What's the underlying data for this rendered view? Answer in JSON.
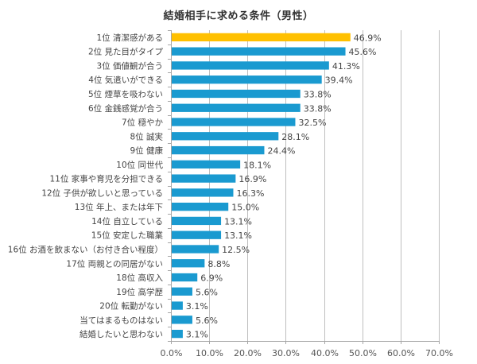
{
  "chart_data": {
    "type": "bar",
    "orientation": "horizontal",
    "title": "結婚相手に求める条件（男性）",
    "xlabel": "",
    "ylabel": "",
    "xlim": [
      0,
      70
    ],
    "x_ticks": [
      "0.0%",
      "10.0%",
      "20.0%",
      "30.0%",
      "40.0%",
      "50.0%",
      "60.0%",
      "70.0%"
    ],
    "grid": true,
    "legend": "none",
    "value_suffix": "%",
    "colors": {
      "highlight": "#FFC000",
      "default": "#1A9AD0",
      "grid": "#BFBFBF",
      "axis": "#A6A6A6"
    },
    "categories": [
      "1位 清潔感がある",
      "2位 見た目がタイプ",
      "3位 価値観が合う",
      "4位 気遣いができる",
      "5位 煙草を吸わない",
      "6位 金銭感覚が合う",
      "7位 穏やか",
      "8位 誠実",
      "9位 健康",
      "10位 同世代",
      "11位 家事や育児を分担できる",
      "12位 子供が欲しいと思っている",
      "13位 年上、または年下",
      "14位 自立している",
      "15位 安定した職業",
      "16位 お酒を飲まない（お付き合い程度）",
      "17位 両親との同居がない",
      "18位 高収入",
      "19位 高学歴",
      "20位 転勤がない",
      "当てはまるものはない",
      "結婚したいと思わない"
    ],
    "values": [
      46.9,
      45.6,
      41.3,
      39.4,
      33.8,
      33.8,
      32.5,
      28.1,
      24.4,
      18.1,
      16.9,
      16.3,
      15.0,
      13.1,
      13.1,
      12.5,
      8.8,
      6.9,
      5.6,
      3.1,
      5.6,
      3.1
    ],
    "value_labels": [
      "46.9%",
      "45.6%",
      "41.3%",
      "39.4%",
      "33.8%",
      "33.8%",
      "32.5%",
      "28.1%",
      "24.4%",
      "18.1%",
      "16.9%",
      "16.3%",
      "15.0%",
      "13.1%",
      "13.1%",
      "12.5%",
      "8.8%",
      "6.9%",
      "5.6%",
      "3.1%",
      "5.6%",
      "3.1%"
    ],
    "highlight_index": 0
  }
}
